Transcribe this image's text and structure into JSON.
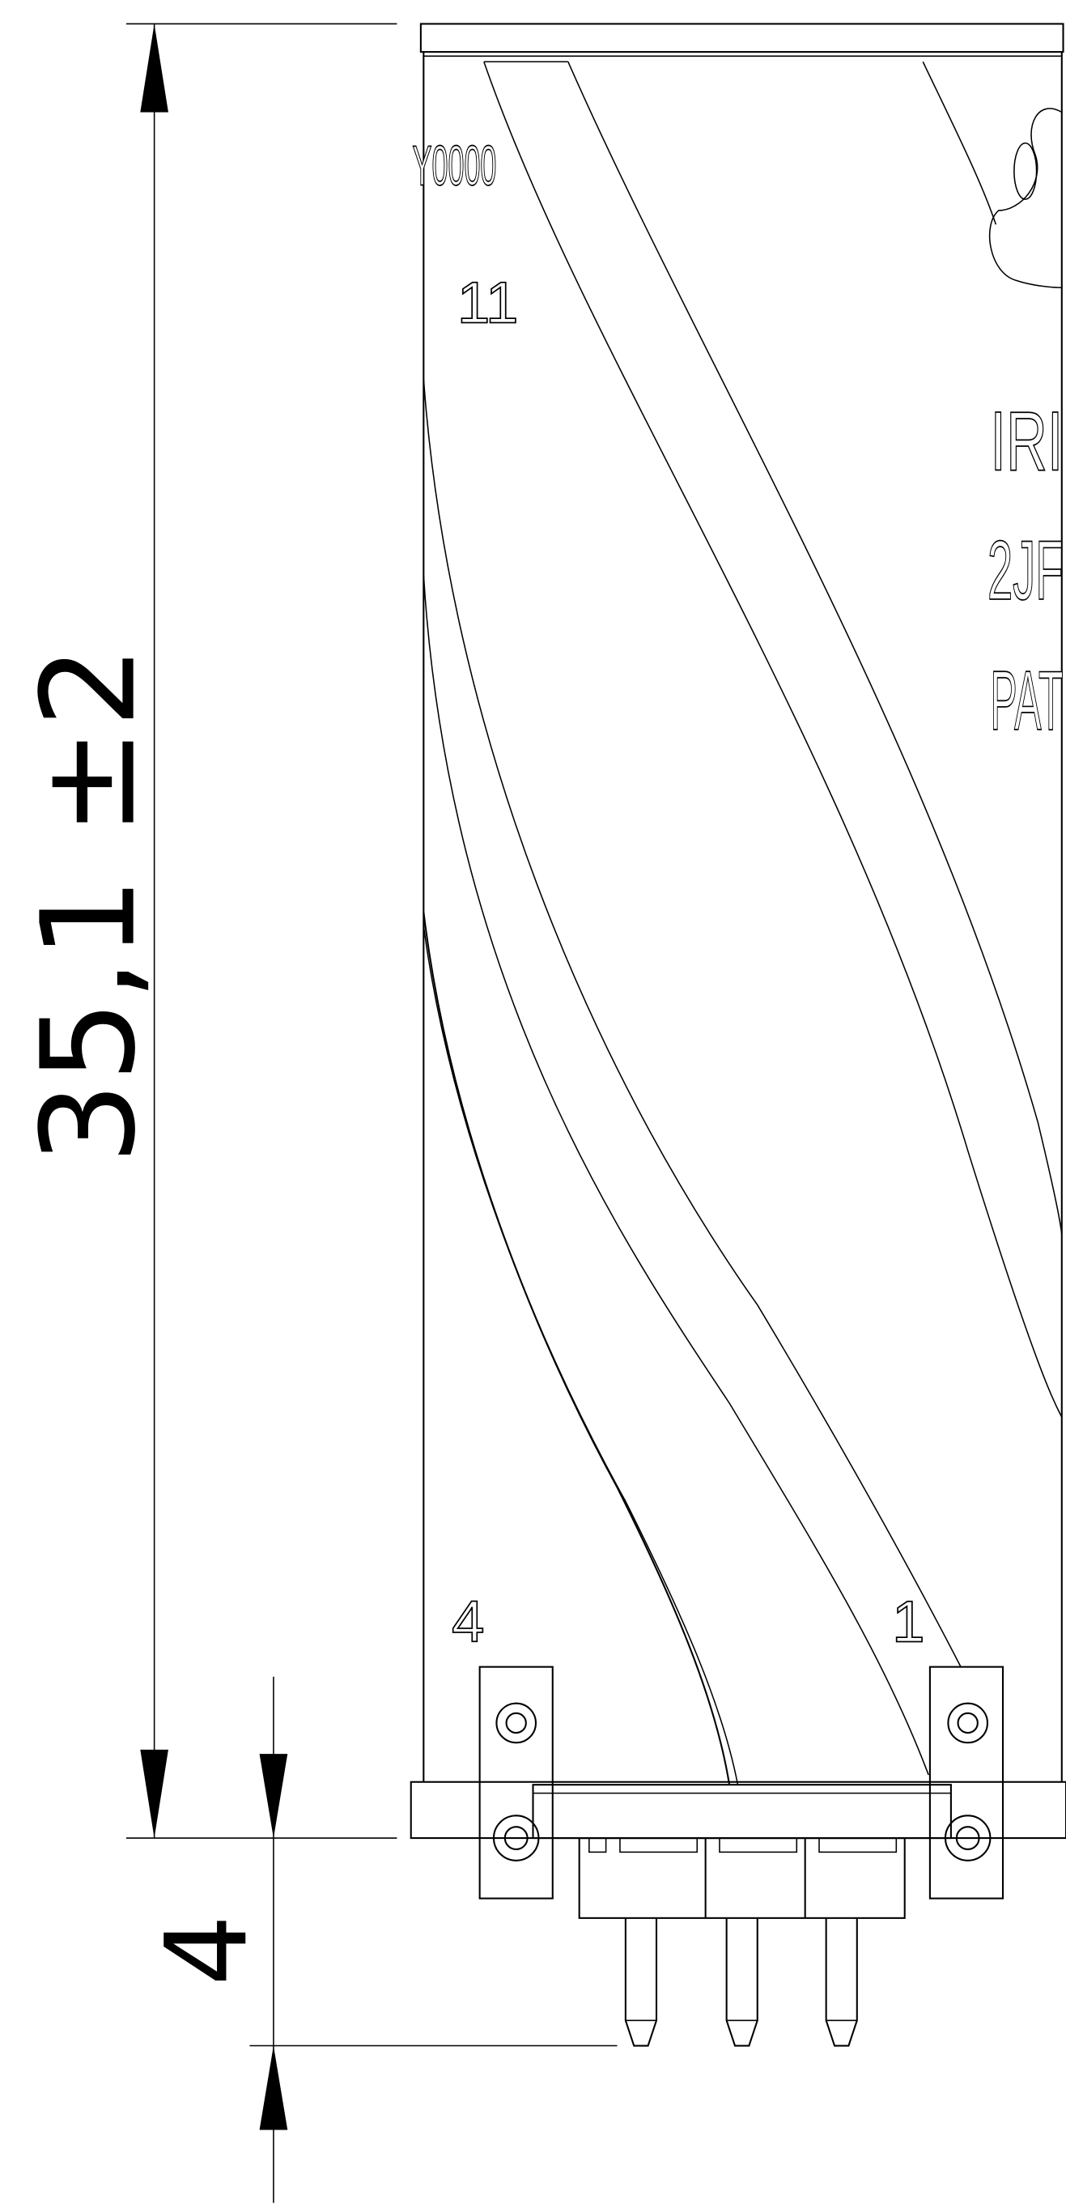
{
  "dimensions": {
    "height": "35,1 ±2",
    "pin_length": "4"
  },
  "labels": {
    "code": "Y0000",
    "pin_11": "11",
    "pin_4": "4",
    "pin_1": "1",
    "text_lines": [
      "IRI",
      "2JF",
      "PAT"
    ]
  }
}
